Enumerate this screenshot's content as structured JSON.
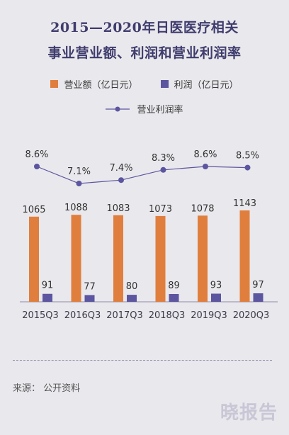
{
  "header": {
    "title_line1": "2015—2020年日医医疗相关",
    "title_line2": "事业营业额、利润和营业利润率"
  },
  "colors": {
    "revenue": "#e07f3d",
    "profit": "#5c55a0",
    "margin_line": "#5c55a0",
    "title": "#3f3c6e"
  },
  "chart_data": {
    "type": "bar",
    "categories": [
      "2015Q3",
      "2016Q3",
      "2017Q3",
      "2018Q3",
      "2019Q3",
      "2020Q3"
    ],
    "series": [
      {
        "name": "营业额（亿日元）",
        "type": "bar",
        "values": [
          1065,
          1088,
          1083,
          1073,
          1078,
          1143
        ],
        "labels": [
          "1065",
          "1088",
          "1083",
          "1073",
          "1078",
          "1143"
        ]
      },
      {
        "name": "利润（亿日元）",
        "type": "bar",
        "values": [
          91,
          77,
          80,
          89,
          93,
          97
        ],
        "labels": [
          "91",
          "77",
          "80",
          "89",
          "93",
          "97"
        ]
      },
      {
        "name": "营业利润率",
        "type": "line",
        "values": [
          8.6,
          7.1,
          7.4,
          8.3,
          8.6,
          8.5
        ],
        "labels": [
          "8.6%",
          "7.1%",
          "7.4%",
          "8.3%",
          "8.6%",
          "8.5%"
        ]
      }
    ],
    "legend_position": "top",
    "grid": false
  },
  "footer": {
    "source": "来源：  公开资料",
    "watermark": "晓报告"
  }
}
